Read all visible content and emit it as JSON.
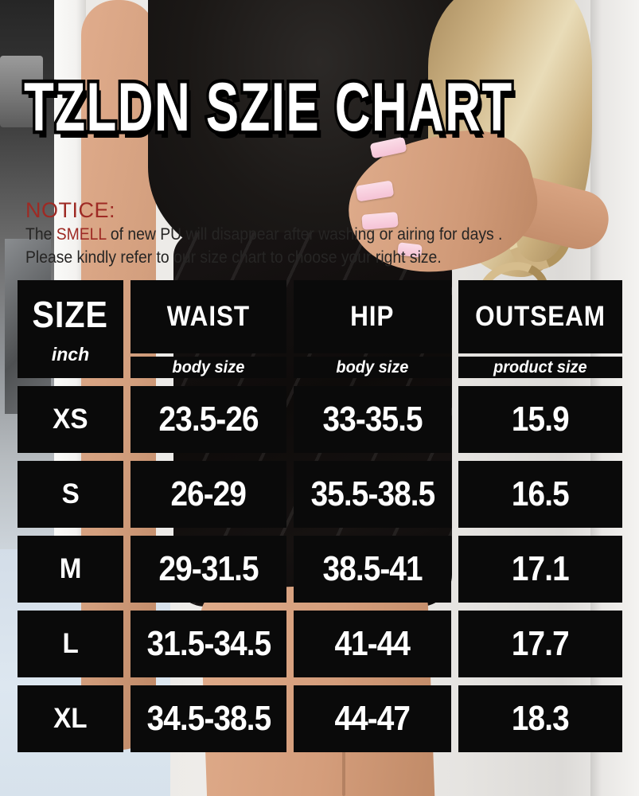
{
  "title": "TZLDN SZIE CHART",
  "notice": {
    "heading": "NOTICE:",
    "line1_pre": "The ",
    "line1_highlight": "SMELL",
    "line1_post": " of new PU will disappear after washing or airing for days .",
    "line2": "Please kindly refer to our size chart to choose your right size."
  },
  "size_chart": {
    "size_header": "SIZE",
    "unit_label": "inch",
    "columns": [
      {
        "label": "WAIST",
        "sublabel": "body size"
      },
      {
        "label": "HIP",
        "sublabel": "body size"
      },
      {
        "label": "OUTSEAM",
        "sublabel": "product size"
      }
    ],
    "rows": [
      {
        "size": "XS",
        "waist": "23.5-26",
        "hip": "33-35.5",
        "outseam": "15.9"
      },
      {
        "size": "S",
        "waist": "26-29",
        "hip": "35.5-38.5",
        "outseam": "16.5"
      },
      {
        "size": "M",
        "waist": "29-31.5",
        "hip": "38.5-41",
        "outseam": "17.1"
      },
      {
        "size": "L",
        "waist": "31.5-34.5",
        "hip": "41-44",
        "outseam": "17.7"
      },
      {
        "size": "XL",
        "waist": "34.5-38.5",
        "hip": "44-47",
        "outseam": "18.3"
      }
    ]
  },
  "chart_data": {
    "type": "table",
    "title": "TZLDN SZIE CHART",
    "unit": "inch",
    "columns": [
      "SIZE",
      "WAIST (body size)",
      "HIP (body size)",
      "OUTSEAM (product size)"
    ],
    "rows": [
      [
        "XS",
        "23.5-26",
        "33-35.5",
        "15.9"
      ],
      [
        "S",
        "26-29",
        "35.5-38.5",
        "16.5"
      ],
      [
        "M",
        "29-31.5",
        "38.5-41",
        "17.1"
      ],
      [
        "L",
        "31.5-34.5",
        "41-44",
        "17.7"
      ],
      [
        "XL",
        "34.5-38.5",
        "44-47",
        "18.3"
      ]
    ]
  },
  "colors": {
    "notice_red": "#9e2a24",
    "cell_black": "#0a0a0a",
    "cell_text": "#ffffff",
    "title_fill": "#ffffff",
    "title_outline": "#000000"
  }
}
